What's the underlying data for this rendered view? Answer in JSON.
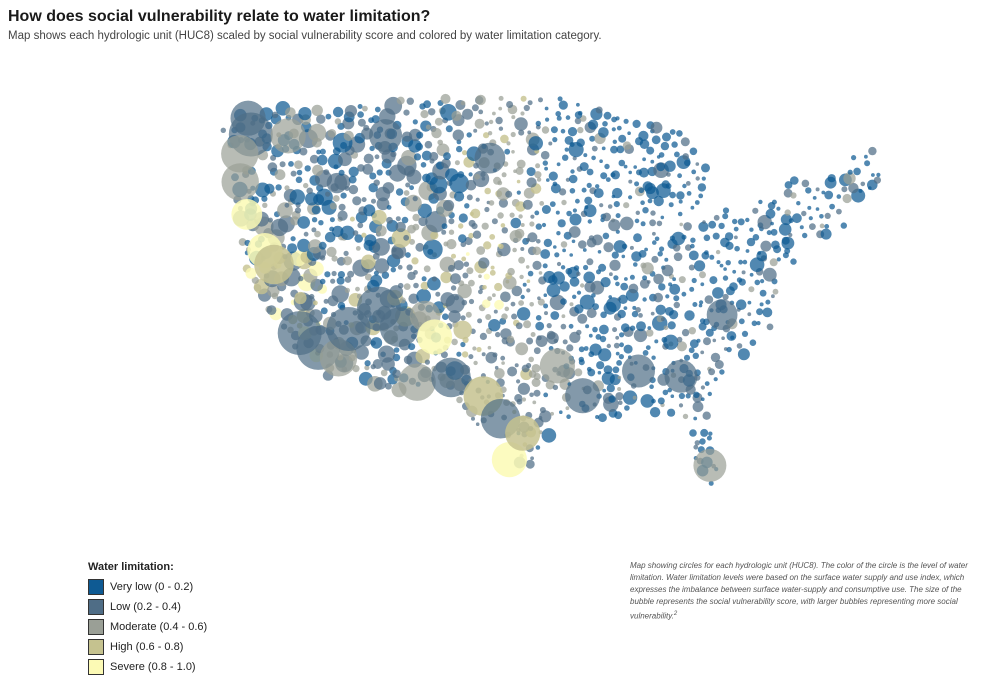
{
  "header": {
    "title": "How does social vulnerability relate to water limitation?",
    "subtitle": "Map shows each hydrologic unit (HUC8) scaled by social vulnerability score and colored by water limitation category."
  },
  "legend": {
    "title": "Water limitation:",
    "items": [
      {
        "label": "Very low (0 - 0.2)",
        "color": "#0e5a93"
      },
      {
        "label": "Low (0.2 - 0.4)",
        "color": "#4f6d86"
      },
      {
        "label": "Moderate (0.4 - 0.6)",
        "color": "#9a9f96"
      },
      {
        "label": "High (0.6 - 0.8)",
        "color": "#c5c28f"
      },
      {
        "label": "Severe (0.8 - 1.0)",
        "color": "#fcfab5"
      }
    ]
  },
  "caption": {
    "text": "Map showing circles for each hydrologic unit (HUC8). The color of the circle is the level of water limitation. Water limitation levels were based on the surface water supply and use index, which expresses the imbalance between surface water-supply and consumptive use. The size of the bubble represents the social vulnerability score, with larger bubbles representing more social vulnerability.",
    "footnote": "2"
  },
  "chart_data": {
    "type": "scatter",
    "title": "How does social vulnerability relate to water limitation?",
    "subtitle": "Map shows each hydrologic unit (HUC8) scaled by social vulnerability score and colored by water limitation category.",
    "encoding": {
      "size": "social vulnerability score",
      "color": "water limitation category"
    },
    "categories": [
      "Very low (0 - 0.2)",
      "Low (0.2 - 0.4)",
      "Moderate (0.4 - 0.6)",
      "High (0.6 - 0.8)",
      "Severe (0.8 - 1.0)"
    ],
    "colors": [
      "#0e5a93",
      "#4f6d86",
      "#9a9f96",
      "#c5c28f",
      "#fcfab5"
    ],
    "notable_bubbles": [
      {
        "lon": -122.3,
        "lat": 48.6,
        "vulnerability": 0.8,
        "category": 1
      },
      {
        "lon": -122.2,
        "lat": 47.6,
        "vulnerability": 1.0,
        "category": 1
      },
      {
        "lon": -119.0,
        "lat": 47.3,
        "vulnerability": 0.8,
        "category": 2
      },
      {
        "lon": -123.3,
        "lat": 46.5,
        "vulnerability": 0.85,
        "category": 2
      },
      {
        "lon": -123.5,
        "lat": 44.8,
        "vulnerability": 0.85,
        "category": 2
      },
      {
        "lon": -123.2,
        "lat": 42.8,
        "vulnerability": 0.7,
        "category": 4
      },
      {
        "lon": -121.9,
        "lat": 40.5,
        "vulnerability": 0.8,
        "category": 4
      },
      {
        "lon": -121.2,
        "lat": 39.6,
        "vulnerability": 0.9,
        "category": 3
      },
      {
        "lon": -119.4,
        "lat": 35.3,
        "vulnerability": 1.0,
        "category": 1
      },
      {
        "lon": -117.8,
        "lat": 34.3,
        "vulnerability": 1.0,
        "category": 1
      },
      {
        "lon": -116.0,
        "lat": 33.6,
        "vulnerability": 0.85,
        "category": 2
      },
      {
        "lon": -114.9,
        "lat": 35.3,
        "vulnerability": 1.0,
        "category": 1
      },
      {
        "lon": -112.0,
        "lat": 36.4,
        "vulnerability": 1.0,
        "category": 1
      },
      {
        "lon": -110.2,
        "lat": 35.2,
        "vulnerability": 0.9,
        "category": 1
      },
      {
        "lon": -107.8,
        "lat": 35.8,
        "vulnerability": 0.7,
        "category": 2
      },
      {
        "lon": -107.0,
        "lat": 34.5,
        "vulnerability": 0.8,
        "category": 4
      },
      {
        "lon": -108.8,
        "lat": 31.8,
        "vulnerability": 0.85,
        "category": 2
      },
      {
        "lon": -105.6,
        "lat": 32.0,
        "vulnerability": 0.9,
        "category": 1
      },
      {
        "lon": -102.6,
        "lat": 30.8,
        "vulnerability": 0.9,
        "category": 3
      },
      {
        "lon": -101.0,
        "lat": 29.4,
        "vulnerability": 0.9,
        "category": 1
      },
      {
        "lon": -100.2,
        "lat": 26.9,
        "vulnerability": 0.8,
        "category": 4
      },
      {
        "lon": -98.9,
        "lat": 28.5,
        "vulnerability": 0.8,
        "category": 3
      },
      {
        "lon": -95.6,
        "lat": 32.6,
        "vulnerability": 0.8,
        "category": 2
      },
      {
        "lon": -93.2,
        "lat": 30.8,
        "vulnerability": 0.8,
        "category": 1
      },
      {
        "lon": -88.0,
        "lat": 32.4,
        "vulnerability": 0.75,
        "category": 1
      },
      {
        "lon": -84.0,
        "lat": 32.2,
        "vulnerability": 0.75,
        "category": 1
      },
      {
        "lon": -80.5,
        "lat": 36.1,
        "vulnerability": 0.7,
        "category": 1
      },
      {
        "lon": -80.8,
        "lat": 26.9,
        "vulnerability": 0.75,
        "category": 2
      },
      {
        "lon": -101.6,
        "lat": 45.3,
        "vulnerability": 0.7,
        "category": 1
      },
      {
        "lon": -110.6,
        "lat": 46.9,
        "vulnerability": 0.75,
        "category": 1
      }
    ],
    "grid": false,
    "legend_position": "bottom-left"
  }
}
